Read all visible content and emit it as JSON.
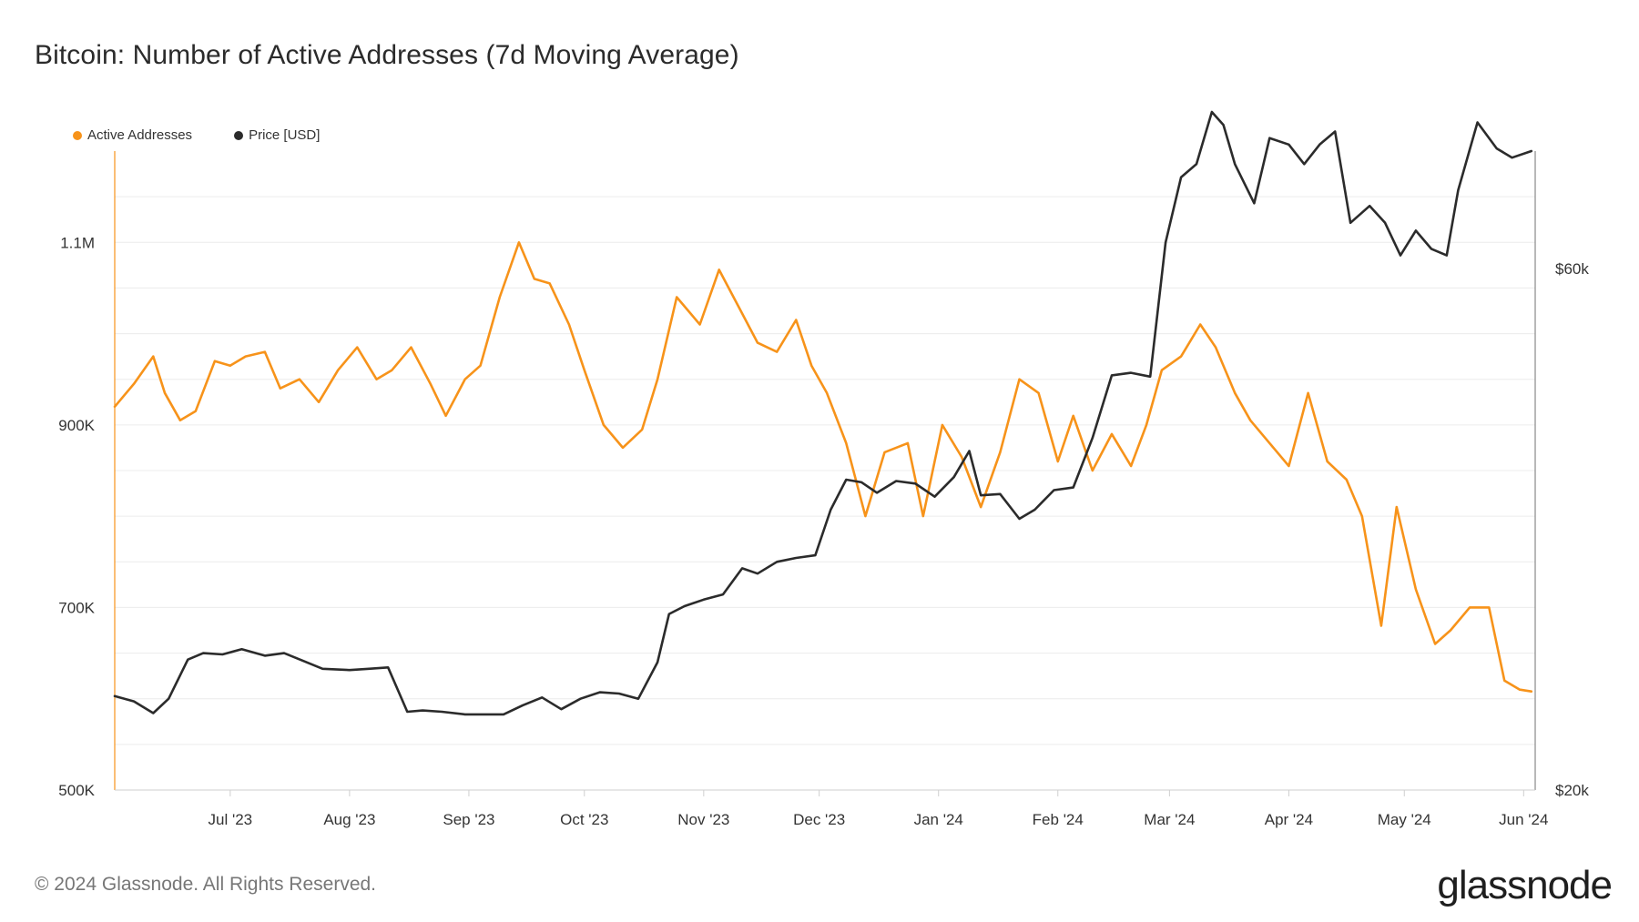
{
  "title": "Bitcoin: Number of Active Addresses (7d Moving Average)",
  "legend": [
    {
      "label": "Active Addresses",
      "color": "#f7931a"
    },
    {
      "label": "Price [USD]",
      "color": "#2b2b2b"
    }
  ],
  "footer": "© 2024 Glassnode. All Rights Reserved.",
  "brand": "glassnode",
  "chart_data": {
    "type": "line",
    "x_ticks": [
      "Jul '23",
      "Aug '23",
      "Sep '23",
      "Oct '23",
      "Nov '23",
      "Dec '23",
      "Jan '24",
      "Feb '24",
      "Mar '24",
      "Apr '24",
      "May '24",
      "Jun '24"
    ],
    "left_axis": {
      "ticks": [
        500000,
        700000,
        900000,
        1100000
      ],
      "tick_labels": [
        "500K",
        "700K",
        "900K",
        "1.1M"
      ],
      "range": [
        500000,
        1200000
      ]
    },
    "right_axis": {
      "ticks": [
        20000,
        60000
      ],
      "tick_labels": [
        "$20k",
        "$60k"
      ],
      "range": [
        20000,
        69000
      ]
    },
    "grid": true,
    "legend_position": "top-left",
    "series": [
      {
        "name": "Active Addresses",
        "axis": "left",
        "color": "#f7931a",
        "x": [
          "2023-06-01",
          "2023-06-06",
          "2023-06-11",
          "2023-06-14",
          "2023-06-18",
          "2023-06-22",
          "2023-06-27",
          "2023-07-01",
          "2023-07-05",
          "2023-07-10",
          "2023-07-14",
          "2023-07-19",
          "2023-07-24",
          "2023-07-29",
          "2023-08-03",
          "2023-08-08",
          "2023-08-12",
          "2023-08-17",
          "2023-08-22",
          "2023-08-26",
          "2023-08-31",
          "2023-09-04",
          "2023-09-09",
          "2023-09-14",
          "2023-09-18",
          "2023-09-22",
          "2023-09-27",
          "2023-10-01",
          "2023-10-06",
          "2023-10-11",
          "2023-10-16",
          "2023-10-20",
          "2023-10-25",
          "2023-10-31",
          "2023-11-05",
          "2023-11-10",
          "2023-11-15",
          "2023-11-20",
          "2023-11-25",
          "2023-11-29",
          "2023-12-03",
          "2023-12-08",
          "2023-12-13",
          "2023-12-18",
          "2023-12-24",
          "2023-12-28",
          "2024-01-02",
          "2024-01-07",
          "2024-01-12",
          "2024-01-17",
          "2024-01-22",
          "2024-01-27",
          "2024-02-01",
          "2024-02-05",
          "2024-02-10",
          "2024-02-15",
          "2024-02-20",
          "2024-02-24",
          "2024-02-28",
          "2024-03-04",
          "2024-03-09",
          "2024-03-13",
          "2024-03-18",
          "2024-03-22",
          "2024-03-27",
          "2024-04-01",
          "2024-04-06",
          "2024-04-11",
          "2024-04-16",
          "2024-04-20",
          "2024-04-25",
          "2024-04-29",
          "2024-05-04",
          "2024-05-09",
          "2024-05-13",
          "2024-05-18",
          "2024-05-23",
          "2024-05-27",
          "2024-05-31",
          "2024-06-03"
        ],
        "values": [
          920000,
          945000,
          975000,
          935000,
          905000,
          915000,
          970000,
          965000,
          975000,
          980000,
          940000,
          950000,
          925000,
          960000,
          985000,
          950000,
          960000,
          985000,
          945000,
          910000,
          950000,
          965000,
          1040000,
          1100000,
          1060000,
          1055000,
          1010000,
          960000,
          900000,
          875000,
          895000,
          950000,
          1040000,
          1010000,
          1070000,
          1030000,
          990000,
          980000,
          1015000,
          965000,
          935000,
          880000,
          800000,
          870000,
          880000,
          800000,
          900000,
          865000,
          810000,
          870000,
          950000,
          935000,
          860000,
          910000,
          850000,
          890000,
          855000,
          900000,
          960000,
          975000,
          1010000,
          985000,
          935000,
          905000,
          880000,
          855000,
          935000,
          860000,
          840000,
          800000,
          680000,
          810000,
          720000,
          660000,
          675000,
          700000,
          700000,
          620000,
          610000,
          608000
        ]
      },
      {
        "name": "Price [USD]",
        "axis": "right",
        "color": "#2b2b2b",
        "x": [
          "2023-06-01",
          "2023-06-06",
          "2023-06-11",
          "2023-06-15",
          "2023-06-20",
          "2023-06-24",
          "2023-06-29",
          "2023-07-04",
          "2023-07-10",
          "2023-07-15",
          "2023-07-20",
          "2023-07-25",
          "2023-08-01",
          "2023-08-06",
          "2023-08-11",
          "2023-08-16",
          "2023-08-20",
          "2023-08-25",
          "2023-08-31",
          "2023-09-05",
          "2023-09-10",
          "2023-09-15",
          "2023-09-20",
          "2023-09-25",
          "2023-09-30",
          "2023-10-05",
          "2023-10-10",
          "2023-10-15",
          "2023-10-20",
          "2023-10-23",
          "2023-10-27",
          "2023-11-01",
          "2023-11-06",
          "2023-11-11",
          "2023-11-15",
          "2023-11-20",
          "2023-11-25",
          "2023-11-30",
          "2023-12-04",
          "2023-12-08",
          "2023-12-12",
          "2023-12-16",
          "2023-12-21",
          "2023-12-26",
          "2023-12-31",
          "2024-01-05",
          "2024-01-09",
          "2024-01-12",
          "2024-01-17",
          "2024-01-22",
          "2024-01-26",
          "2024-01-31",
          "2024-02-05",
          "2024-02-10",
          "2024-02-15",
          "2024-02-20",
          "2024-02-25",
          "2024-02-29",
          "2024-03-04",
          "2024-03-08",
          "2024-03-12",
          "2024-03-15",
          "2024-03-18",
          "2024-03-23",
          "2024-03-27",
          "2024-04-01",
          "2024-04-05",
          "2024-04-09",
          "2024-04-13",
          "2024-04-17",
          "2024-04-22",
          "2024-04-26",
          "2024-04-30",
          "2024-05-04",
          "2024-05-08",
          "2024-05-12",
          "2024-05-15",
          "2024-05-20",
          "2024-05-25",
          "2024-05-29",
          "2024-06-03"
        ],
        "values": [
          27200,
          26800,
          25900,
          27000,
          30000,
          30500,
          30400,
          30800,
          30300,
          30500,
          29900,
          29300,
          29200,
          29300,
          29400,
          26000,
          26100,
          26000,
          25800,
          25800,
          25800,
          26500,
          27100,
          26200,
          27000,
          27500,
          27400,
          27000,
          29800,
          33500,
          34100,
          34600,
          35000,
          37000,
          36600,
          37500,
          37800,
          38000,
          41500,
          43800,
          43600,
          42800,
          43700,
          43500,
          42500,
          44000,
          46000,
          42600,
          42700,
          40800,
          41500,
          43000,
          43200,
          47000,
          51800,
          52000,
          51700,
          62000,
          67000,
          68000,
          72000,
          71000,
          68000,
          65000,
          70000,
          69500,
          68000,
          69500,
          70500,
          63500,
          64800,
          63500,
          61000,
          62900,
          61500,
          61000,
          66000,
          71200,
          69200,
          68500,
          69000
        ]
      }
    ]
  }
}
